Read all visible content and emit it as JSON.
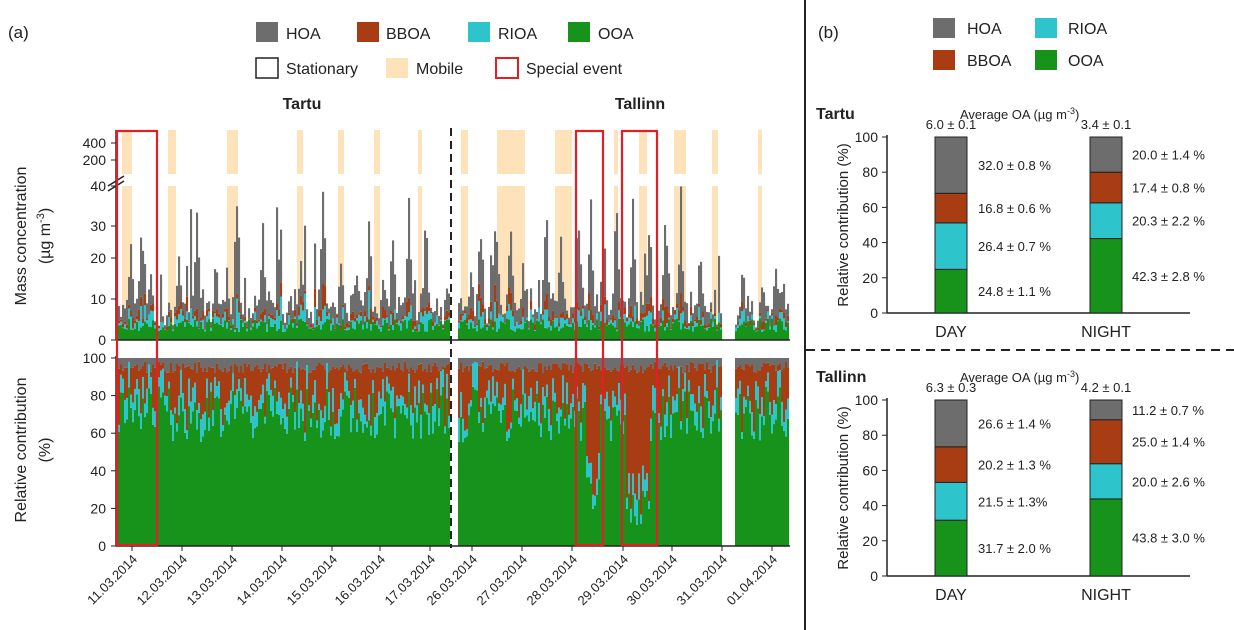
{
  "panel_a": {
    "label": "(a)",
    "legend": {
      "components": [
        {
          "name": "HOA",
          "color": "#6d6d6d"
        },
        {
          "name": "BBOA",
          "color": "#a83c13"
        },
        {
          "name": "RIOA",
          "color": "#2ec4cc"
        },
        {
          "name": "OOA",
          "color": "#17921b"
        }
      ],
      "modes": [
        {
          "name": "Stationary",
          "kind": "stationary"
        },
        {
          "name": "Mobile",
          "kind": "mobile"
        },
        {
          "name": "Special event",
          "kind": "special"
        }
      ]
    },
    "city_titles": [
      "Tartu",
      "Tallinn"
    ],
    "top": {
      "ylabel_line1": "Mass concentration",
      "ylabel_line2": "(µg m",
      "ylabel_sup": "-3",
      "ylabel_close": ")",
      "yticks_lower": [
        "0",
        "10",
        "20",
        "30",
        "40"
      ],
      "yticks_upper": [
        "200",
        "400"
      ]
    },
    "bottom": {
      "ylabel_line1": "Relative contribution",
      "ylabel_line2": "(%)",
      "yticks": [
        "0",
        "20",
        "40",
        "60",
        "80",
        "100"
      ]
    },
    "dates": [
      "11.03.2014",
      "12.03.2014",
      "13.03.2014",
      "14.03.2014",
      "15.03.2014",
      "16.03.2014",
      "17.03.2014",
      "26.03.2014",
      "27.03.2014",
      "28.03.2014",
      "29.03.2014",
      "30.03.2014",
      "31.03.2014",
      "01.04.2014"
    ]
  },
  "panel_b": {
    "label": "(b)",
    "legend": [
      {
        "name": "HOA",
        "color": "#6d6d6d"
      },
      {
        "name": "RIOA",
        "color": "#2ec4cc"
      },
      {
        "name": "BBOA",
        "color": "#a83c13"
      },
      {
        "name": "OOA",
        "color": "#17921b"
      }
    ],
    "ylabel": "Relative contribution (%)",
    "yticks": [
      "0",
      "20",
      "40",
      "60",
      "80",
      "100"
    ],
    "avg_label": "Average OA (µg m",
    "avg_sup": "-3",
    "avg_close": ")"
  },
  "chart_data": [
    {
      "type": "bar",
      "title": "Tartu",
      "subtitle": "Average OA (µg m-3)",
      "categories": [
        "DAY",
        "NIGHT"
      ],
      "totals": [
        "6.0 ± 0.1",
        "3.4 ± 0.1"
      ],
      "ylabel": "Relative contribution (%)",
      "ylim": [
        0,
        100
      ],
      "stacked": true,
      "series": [
        {
          "name": "OOA",
          "color": "#17921b",
          "values": [
            24.8,
            42.3
          ],
          "labels": [
            "24.8 ± 1.1 %",
            "42.3 ± 2.8 %"
          ]
        },
        {
          "name": "RIOA",
          "color": "#2ec4cc",
          "values": [
            26.4,
            20.3
          ],
          "labels": [
            "26.4 ± 0.7 %",
            "20.3 ± 2.2 %"
          ]
        },
        {
          "name": "BBOA",
          "color": "#a83c13",
          "values": [
            16.8,
            17.4
          ],
          "labels": [
            "16.8 ± 0.6 %",
            "17.4 ± 0.8 %"
          ]
        },
        {
          "name": "HOA",
          "color": "#6d6d6d",
          "values": [
            32.0,
            20.0
          ],
          "labels": [
            "32.0 ± 0.8 %",
            "20.0 ± 1.4 %"
          ]
        }
      ]
    },
    {
      "type": "bar",
      "title": "Tallinn",
      "subtitle": "Average OA (µg m-3)",
      "categories": [
        "DAY",
        "NIGHT"
      ],
      "totals": [
        "6.3 ± 0.3",
        "4.2 ± 0.1"
      ],
      "ylabel": "Relative contribution (%)",
      "ylim": [
        0,
        100
      ],
      "stacked": true,
      "series": [
        {
          "name": "OOA",
          "color": "#17921b",
          "values": [
            31.7,
            43.8
          ],
          "labels": [
            "31.7 ± 2.0 %",
            "43.8 ± 3.0 %"
          ]
        },
        {
          "name": "RIOA",
          "color": "#2ec4cc",
          "values": [
            21.5,
            20.0
          ],
          "labels": [
            "21.5 ± 1.3%",
            "20.0 ± 2.6 %"
          ]
        },
        {
          "name": "BBOA",
          "color": "#a83c13",
          "values": [
            20.2,
            25.0
          ],
          "labels": [
            "20.2 ± 1.3 %",
            "25.0 ± 1.4 %"
          ]
        },
        {
          "name": "HOA",
          "color": "#6d6d6d",
          "values": [
            26.6,
            11.2
          ],
          "labels": [
            "26.6 ± 1.4 %",
            "11.2 ± 0.7 %"
          ]
        }
      ]
    },
    {
      "type": "area",
      "title": "",
      "xlabel": "",
      "ylabel": "Mass concentration (µg m-3)",
      "note": "Stacked OA component time series (HOA, BBOA, RIOA, OOA) for Tartu (11.03.2014–17.03.2014) and Tallinn (26.03.2014–01.04.2014); broken y-axis 0–40 and 200–400",
      "x": [
        "11.03.2014",
        "12.03.2014",
        "13.03.2014",
        "14.03.2014",
        "15.03.2014",
        "16.03.2014",
        "17.03.2014",
        "26.03.2014",
        "27.03.2014",
        "28.03.2014",
        "29.03.2014",
        "30.03.2014",
        "31.03.2014",
        "01.04.2014"
      ],
      "ylim": [
        0,
        400
      ]
    },
    {
      "type": "area",
      "title": "",
      "xlabel": "",
      "ylabel": "Relative contribution (%)",
      "note": "Stacked relative contribution of HOA, BBOA, RIOA, OOA over time",
      "ylim": [
        0,
        100
      ]
    }
  ]
}
